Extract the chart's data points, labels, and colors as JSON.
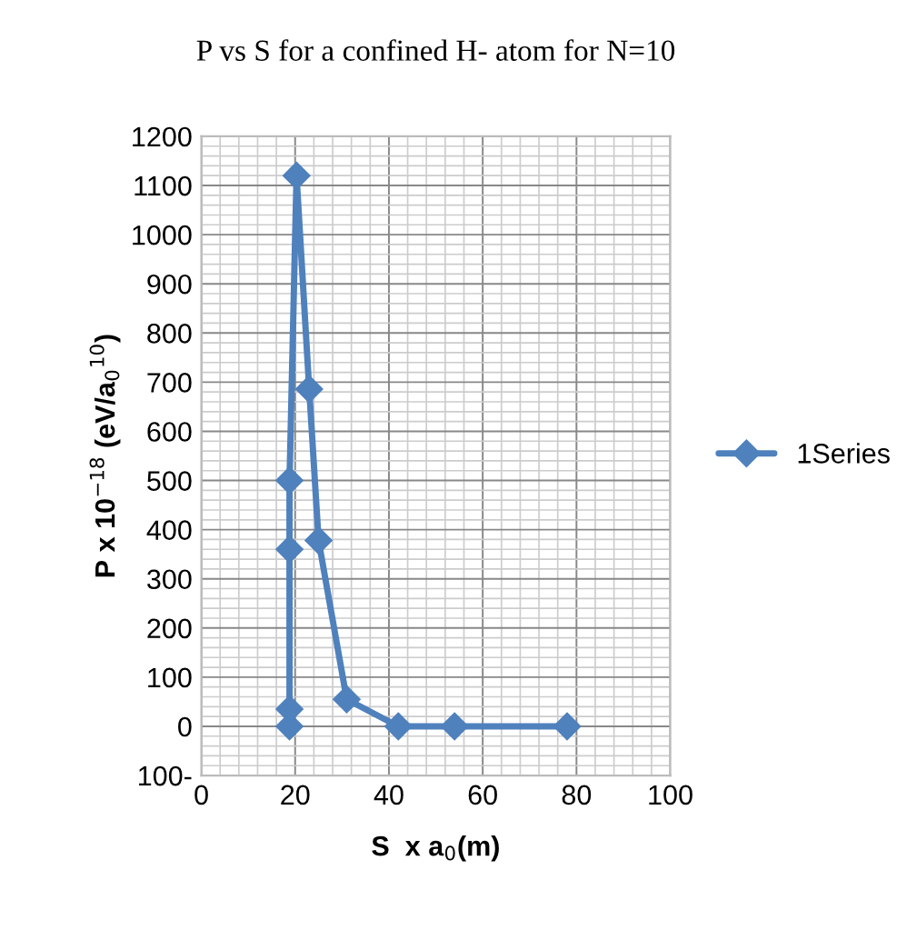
{
  "chart_data": {
    "type": "line",
    "title": "P vs S for a confined H- atom for N=10",
    "xlabel": "S  x a$_{0}$(m)",
    "ylabel": "P x 10$^{−18}$ (eV/a$_{0}$$^{10}$)",
    "series": [
      {
        "name": "1Series",
        "color": "#4f81bd",
        "x": [
          18.8,
          18.8,
          18.8,
          18.8,
          20.3,
          23,
          25,
          31,
          42,
          54,
          78
        ],
        "values": [
          0,
          35,
          360,
          500,
          1120,
          686,
          378,
          55,
          0,
          0,
          0
        ]
      }
    ],
    "xlim": [
      0,
      100
    ],
    "xticks": [
      0,
      20,
      40,
      60,
      80,
      100
    ],
    "ylim": [
      -100,
      1200
    ],
    "yticks": [
      {
        "value": -100,
        "label": "100-"
      },
      0,
      100,
      200,
      300,
      400,
      500,
      600,
      700,
      800,
      900,
      1000,
      1100,
      1200
    ],
    "grid": true,
    "legend": "right",
    "marker": "diamond",
    "line_style": "solid"
  }
}
